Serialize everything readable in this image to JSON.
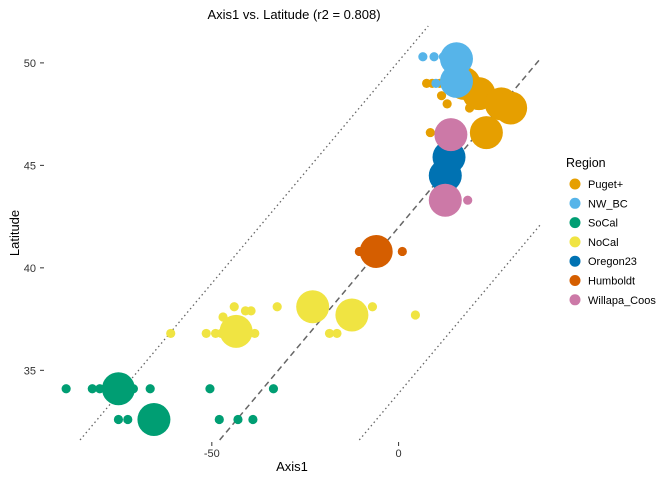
{
  "chart_data": {
    "type": "scatter",
    "title": "Axis1 vs. Latitude (r2 = 0.808)",
    "xlabel": "Axis1",
    "ylabel": "Latitude",
    "xlim": [
      -96,
      40
    ],
    "ylim": [
      31.6,
      51.8
    ],
    "xticks": [
      -50,
      0
    ],
    "yticks": [
      35,
      40,
      45,
      50
    ],
    "grid": false,
    "legend_position": "right",
    "legend_title": "Region",
    "regression": {
      "slope": 0.2167,
      "intercept": 41.98,
      "x_range": [
        -76,
        38
      ],
      "style": "dashed"
    },
    "prediction_band": {
      "offset": 8.1,
      "x_range": [
        -96,
        38
      ],
      "style": "dotted"
    },
    "series": [
      {
        "name": "Puget+",
        "color": "#E69F00",
        "points": [
          {
            "x": 17.5,
            "y": 49.0,
            "size": 5
          },
          {
            "x": 21.5,
            "y": 48.5,
            "size": 5
          },
          {
            "x": 27.5,
            "y": 48.0,
            "size": 5
          },
          {
            "x": 30.0,
            "y": 47.8,
            "size": 5
          },
          {
            "x": 23.5,
            "y": 46.6,
            "size": 5
          },
          {
            "x": 7.5,
            "y": 49.0,
            "size": 1
          },
          {
            "x": 9.0,
            "y": 49.0,
            "size": 1
          },
          {
            "x": 11.0,
            "y": 49.0,
            "size": 1
          },
          {
            "x": 11.5,
            "y": 48.4,
            "size": 1
          },
          {
            "x": 19.0,
            "y": 47.8,
            "size": 1
          },
          {
            "x": 8.5,
            "y": 46.6,
            "size": 1
          },
          {
            "x": 13.0,
            "y": 48.0,
            "size": 1
          }
        ]
      },
      {
        "name": "NW_BC",
        "color": "#56B4E9",
        "points": [
          {
            "x": 15.5,
            "y": 50.2,
            "size": 5
          },
          {
            "x": 15.5,
            "y": 49.1,
            "size": 5
          },
          {
            "x": 6.5,
            "y": 50.3,
            "size": 1
          },
          {
            "x": 9.5,
            "y": 50.3,
            "size": 1
          },
          {
            "x": 12.0,
            "y": 50.3,
            "size": 1
          },
          {
            "x": 10.0,
            "y": 49.0,
            "size": 1
          }
        ]
      },
      {
        "name": "SoCal",
        "color": "#009E73",
        "points": [
          {
            "x": -75.0,
            "y": 34.1,
            "size": 5
          },
          {
            "x": -65.5,
            "y": 32.6,
            "size": 5
          },
          {
            "x": -89.0,
            "y": 34.1,
            "size": 1
          },
          {
            "x": -82.0,
            "y": 34.1,
            "size": 1
          },
          {
            "x": -80.0,
            "y": 34.1,
            "size": 1
          },
          {
            "x": -78.0,
            "y": 34.1,
            "size": 1
          },
          {
            "x": -71.0,
            "y": 34.1,
            "size": 1
          },
          {
            "x": -66.5,
            "y": 34.1,
            "size": 1
          },
          {
            "x": -50.5,
            "y": 34.1,
            "size": 1
          },
          {
            "x": -33.5,
            "y": 34.1,
            "size": 1
          },
          {
            "x": -75.0,
            "y": 32.6,
            "size": 1
          },
          {
            "x": -72.5,
            "y": 32.6,
            "size": 1
          },
          {
            "x": -48.0,
            "y": 32.6,
            "size": 1
          },
          {
            "x": -43.0,
            "y": 32.6,
            "size": 1
          },
          {
            "x": -39.0,
            "y": 32.6,
            "size": 1
          }
        ]
      },
      {
        "name": "NoCal",
        "color": "#F0E442",
        "points": [
          {
            "x": -43.5,
            "y": 36.9,
            "size": 5
          },
          {
            "x": -23.0,
            "y": 38.1,
            "size": 5
          },
          {
            "x": -12.5,
            "y": 37.7,
            "size": 5
          },
          {
            "x": -61.0,
            "y": 36.8,
            "size": 1
          },
          {
            "x": -51.5,
            "y": 36.8,
            "size": 1
          },
          {
            "x": -49.0,
            "y": 36.8,
            "size": 1
          },
          {
            "x": -47.5,
            "y": 36.8,
            "size": 1
          },
          {
            "x": -47.0,
            "y": 37.6,
            "size": 1
          },
          {
            "x": -44.0,
            "y": 38.1,
            "size": 1
          },
          {
            "x": -41.0,
            "y": 37.9,
            "size": 1
          },
          {
            "x": -39.5,
            "y": 37.9,
            "size": 1
          },
          {
            "x": -38.5,
            "y": 36.8,
            "size": 1
          },
          {
            "x": -32.5,
            "y": 38.1,
            "size": 1
          },
          {
            "x": -18.5,
            "y": 36.8,
            "size": 1
          },
          {
            "x": -16.5,
            "y": 36.8,
            "size": 1
          },
          {
            "x": -7.0,
            "y": 38.1,
            "size": 1
          },
          {
            "x": 4.5,
            "y": 37.7,
            "size": 1
          }
        ]
      },
      {
        "name": "Oregon23",
        "color": "#0072B2",
        "points": [
          {
            "x": 13.5,
            "y": 45.4,
            "size": 5
          },
          {
            "x": 12.5,
            "y": 44.5,
            "size": 5
          }
        ]
      },
      {
        "name": "Humboldt",
        "color": "#D55E00",
        "points": [
          {
            "x": -6.0,
            "y": 40.8,
            "size": 5
          },
          {
            "x": -10.5,
            "y": 40.8,
            "size": 1
          },
          {
            "x": -8.5,
            "y": 40.8,
            "size": 1
          },
          {
            "x": 1.0,
            "y": 40.8,
            "size": 1
          }
        ]
      },
      {
        "name": "Willapa_Coos",
        "color": "#CC79A7",
        "points": [
          {
            "x": 14.0,
            "y": 46.5,
            "size": 5
          },
          {
            "x": 12.5,
            "y": 43.3,
            "size": 5
          },
          {
            "x": 17.0,
            "y": 46.5,
            "size": 1
          },
          {
            "x": 18.5,
            "y": 43.3,
            "size": 1
          }
        ]
      }
    ]
  }
}
